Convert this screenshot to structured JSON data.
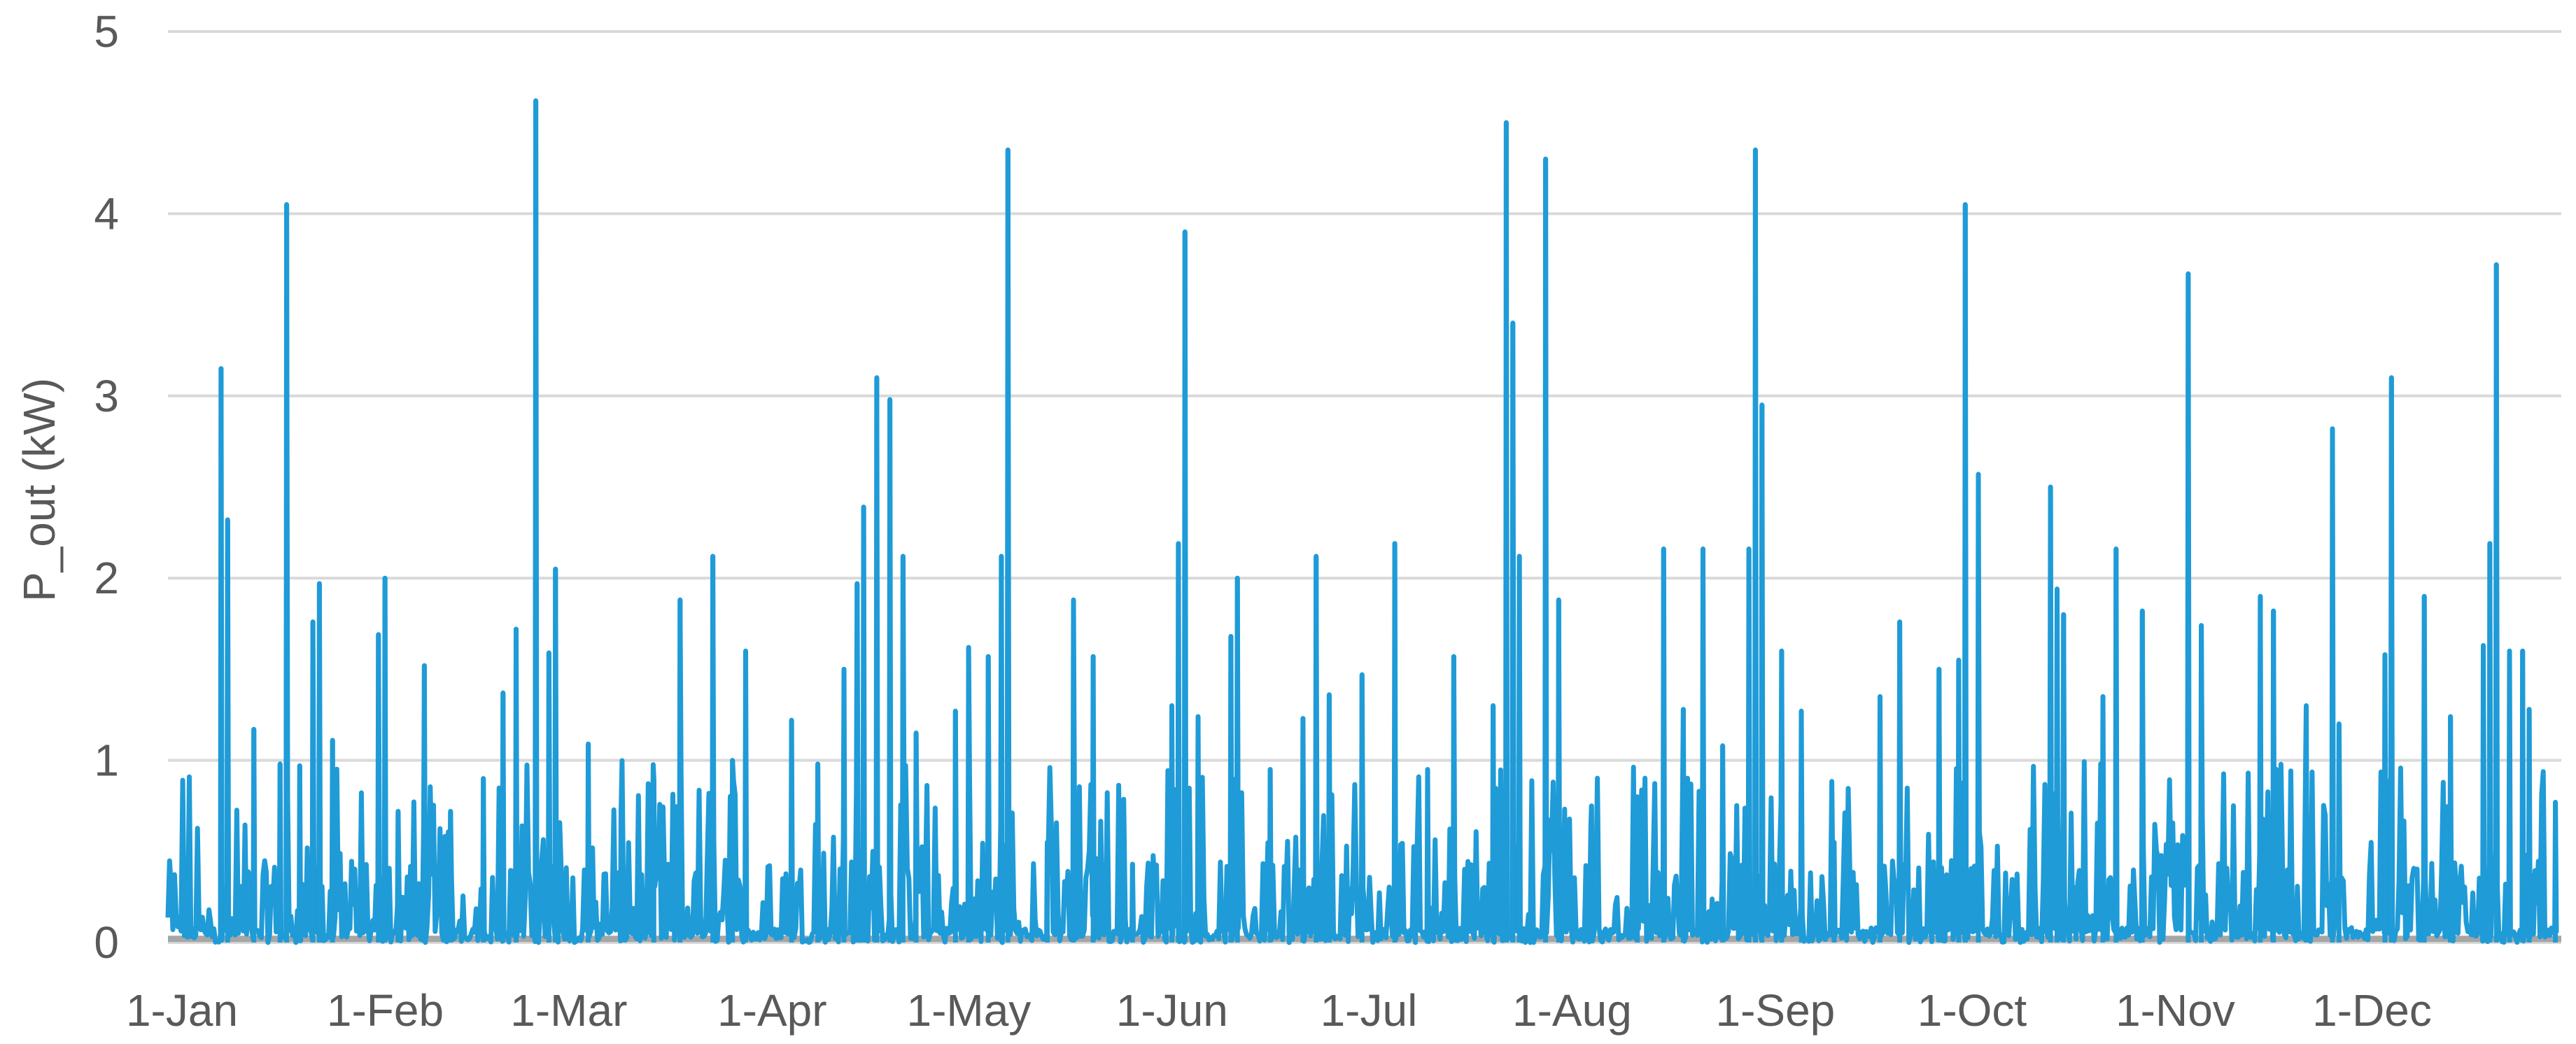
{
  "chart_data": {
    "type": "line",
    "title": "",
    "xlabel": "",
    "ylabel": "P_out (kW)",
    "ylim": [
      0,
      5
    ],
    "yticks": [
      0,
      1,
      2,
      3,
      4,
      5
    ],
    "ytick_labels": [
      "0",
      "1",
      "2",
      "3",
      "4",
      "5"
    ],
    "x_tick_labels": [
      "1-Jan",
      "1-Feb",
      "1-Mar",
      "1-Apr",
      "1-May",
      "1-Jun",
      "1-Jul",
      "1-Aug",
      "1-Sep",
      "1-Oct",
      "1-Nov",
      "1-Dec"
    ],
    "x_tick_day_of_year": [
      1,
      32,
      60,
      91,
      121,
      152,
      182,
      213,
      244,
      274,
      305,
      335
    ],
    "xlim_day_of_year": [
      1,
      366
    ],
    "grid": true,
    "legend": "none",
    "series": [
      {
        "color": "#1f9bd7",
        "peaks": [
          {
            "day": 9,
            "value": 3.15
          },
          {
            "day": 10,
            "value": 2.32
          },
          {
            "day": 14,
            "value": 1.17
          },
          {
            "day": 18,
            "value": 0.98
          },
          {
            "day": 21,
            "value": 0.97
          },
          {
            "day": 23,
            "value": 1.76
          },
          {
            "day": 24,
            "value": 1.97
          },
          {
            "day": 19,
            "value": 4.05
          },
          {
            "day": 26,
            "value": 1.11
          },
          {
            "day": 33,
            "value": 1.69
          },
          {
            "day": 34,
            "value": 2.0
          },
          {
            "day": 36,
            "value": 0.72
          },
          {
            "day": 40,
            "value": 1.52
          },
          {
            "day": 44,
            "value": 0.72
          },
          {
            "day": 49,
            "value": 0.9
          },
          {
            "day": 52,
            "value": 1.37
          },
          {
            "day": 54,
            "value": 1.72
          },
          {
            "day": 57,
            "value": 4.62
          },
          {
            "day": 59,
            "value": 1.59
          },
          {
            "day": 60,
            "value": 2.05
          },
          {
            "day": 65,
            "value": 1.09
          },
          {
            "day": 70,
            "value": 0.72
          },
          {
            "day": 75,
            "value": 0.9
          },
          {
            "day": 79,
            "value": 1.88
          },
          {
            "day": 84,
            "value": 2.12
          },
          {
            "day": 87,
            "value": 1.0
          },
          {
            "day": 89,
            "value": 1.6
          },
          {
            "day": 96,
            "value": 1.22
          },
          {
            "day": 100,
            "value": 0.98
          },
          {
            "day": 104,
            "value": 1.5
          },
          {
            "day": 106,
            "value": 1.97
          },
          {
            "day": 107,
            "value": 2.39
          },
          {
            "day": 109,
            "value": 3.1
          },
          {
            "day": 111,
            "value": 2.98
          },
          {
            "day": 113,
            "value": 2.12
          },
          {
            "day": 115,
            "value": 1.15
          },
          {
            "day": 121,
            "value": 1.27
          },
          {
            "day": 123,
            "value": 1.62
          },
          {
            "day": 126,
            "value": 1.57
          },
          {
            "day": 128,
            "value": 2.12
          },
          {
            "day": 129,
            "value": 4.35
          },
          {
            "day": 135,
            "value": 0.55
          },
          {
            "day": 139,
            "value": 1.88
          },
          {
            "day": 142,
            "value": 1.57
          },
          {
            "day": 148,
            "value": 0.43
          },
          {
            "day": 154,
            "value": 1.3
          },
          {
            "day": 155,
            "value": 2.19
          },
          {
            "day": 156,
            "value": 3.9
          },
          {
            "day": 158,
            "value": 1.24
          },
          {
            "day": 163,
            "value": 1.68
          },
          {
            "day": 164,
            "value": 2.0
          },
          {
            "day": 169,
            "value": 0.95
          },
          {
            "day": 174,
            "value": 1.23
          },
          {
            "day": 176,
            "value": 2.12
          },
          {
            "day": 178,
            "value": 1.36
          },
          {
            "day": 183,
            "value": 1.47
          },
          {
            "day": 188,
            "value": 2.19
          },
          {
            "day": 193,
            "value": 0.95
          },
          {
            "day": 197,
            "value": 1.57
          },
          {
            "day": 203,
            "value": 1.3
          },
          {
            "day": 205,
            "value": 4.5
          },
          {
            "day": 206,
            "value": 3.4
          },
          {
            "day": 207,
            "value": 2.12
          },
          {
            "day": 211,
            "value": 4.3
          },
          {
            "day": 213,
            "value": 1.88
          },
          {
            "day": 218,
            "value": 0.75
          },
          {
            "day": 225,
            "value": 0.8
          },
          {
            "day": 229,
            "value": 2.16
          },
          {
            "day": 232,
            "value": 1.28
          },
          {
            "day": 235,
            "value": 2.16
          },
          {
            "day": 238,
            "value": 1.08
          },
          {
            "day": 242,
            "value": 2.16
          },
          {
            "day": 243,
            "value": 4.35
          },
          {
            "day": 244,
            "value": 2.95
          },
          {
            "day": 247,
            "value": 1.6
          },
          {
            "day": 250,
            "value": 1.27
          },
          {
            "day": 255,
            "value": 0.55
          },
          {
            "day": 262,
            "value": 1.35
          },
          {
            "day": 265,
            "value": 1.76
          },
          {
            "day": 271,
            "value": 1.5
          },
          {
            "day": 274,
            "value": 1.55
          },
          {
            "day": 275,
            "value": 4.05
          },
          {
            "day": 277,
            "value": 2.57
          },
          {
            "day": 288,
            "value": 2.5
          },
          {
            "day": 289,
            "value": 1.94
          },
          {
            "day": 290,
            "value": 1.8
          },
          {
            "day": 296,
            "value": 1.35
          },
          {
            "day": 298,
            "value": 2.16
          },
          {
            "day": 302,
            "value": 1.82
          },
          {
            "day": 309,
            "value": 3.67
          },
          {
            "day": 311,
            "value": 1.74
          },
          {
            "day": 320,
            "value": 1.9
          },
          {
            "day": 322,
            "value": 1.82
          },
          {
            "day": 327,
            "value": 1.3
          },
          {
            "day": 331,
            "value": 2.82
          },
          {
            "day": 332,
            "value": 1.2
          },
          {
            "day": 339,
            "value": 1.58
          },
          {
            "day": 340,
            "value": 3.1
          },
          {
            "day": 345,
            "value": 1.9
          },
          {
            "day": 349,
            "value": 1.24
          },
          {
            "day": 354,
            "value": 1.63
          },
          {
            "day": 355,
            "value": 2.19
          },
          {
            "day": 356,
            "value": 3.72
          },
          {
            "day": 358,
            "value": 1.6
          },
          {
            "day": 360,
            "value": 1.6
          },
          {
            "day": 361,
            "value": 1.28
          },
          {
            "day": 365,
            "value": 0.77
          }
        ]
      },
      {
        "color": "#a6a6a6",
        "values": [
          0.02
        ]
      }
    ]
  }
}
